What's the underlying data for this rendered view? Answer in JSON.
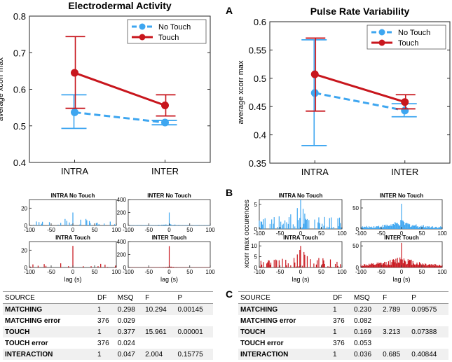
{
  "panel_labels": {
    "a": "A",
    "b": "B",
    "c": "C"
  },
  "colors": {
    "no_touch": "#3ea6f0",
    "touch": "#c8161d",
    "axis": "#262626"
  },
  "chart_data": [
    {
      "id": "eda-main",
      "type": "line",
      "title": "Electrodermal Activity",
      "xlabel": "",
      "ylabel": "average xcorr max",
      "categories": [
        "INTRA",
        "INTER"
      ],
      "ylim": [
        0.4,
        0.8
      ],
      "yticks": [
        "0.4",
        "0.5",
        "0.6",
        "0.7",
        "0.8"
      ],
      "legend": "top-right",
      "series": [
        {
          "name": "No Touch",
          "values": [
            0.537,
            0.509
          ],
          "err_low": [
            0.493,
            0.503
          ],
          "err_high": [
            0.585,
            0.515
          ]
        },
        {
          "name": "Touch",
          "values": [
            0.645,
            0.556
          ],
          "err_low": [
            0.548,
            0.527
          ],
          "err_high": [
            0.744,
            0.585
          ]
        }
      ]
    },
    {
      "id": "prv-main",
      "type": "line",
      "title": "Pulse Rate Variability",
      "xlabel": "",
      "ylabel": "average xcorr max",
      "categories": [
        "INTRA",
        "INTER"
      ],
      "ylim": [
        0.35,
        0.6
      ],
      "yticks": [
        "0.35",
        "0.4",
        "0.45",
        "0.5",
        "0.55",
        "0.6"
      ],
      "legend": "top-right",
      "series": [
        {
          "name": "No Touch",
          "values": [
            0.474,
            0.443
          ],
          "err_low": [
            0.381,
            0.432
          ],
          "err_high": [
            0.568,
            0.455
          ]
        },
        {
          "name": "Touch",
          "values": [
            0.507,
            0.458
          ],
          "err_low": [
            0.442,
            0.446
          ],
          "err_high": [
            0.571,
            0.471
          ]
        }
      ]
    },
    {
      "id": "eda-h1",
      "type": "bar",
      "title": "INTRA No Touch",
      "series": "No Touch",
      "xlim": [
        -100,
        100
      ],
      "ylim": [
        0,
        30
      ],
      "yticks": [
        "0",
        "20"
      ],
      "xticks": [
        "-100",
        "-50",
        "0",
        "50",
        "100"
      ],
      "xlabel": "",
      "values_preview": "sparse counts, peak 15 at lag 0"
    },
    {
      "id": "eda-h2",
      "type": "bar",
      "title": "INTER No Touch",
      "series": "No Touch",
      "xlim": [
        -100,
        100
      ],
      "ylim": [
        0,
        400
      ],
      "yticks": [
        "0",
        "200",
        "400"
      ],
      "xticks": [
        "-100",
        "-50",
        "0",
        "50",
        "100"
      ],
      "xlabel": "",
      "values_preview": "broad low counts, peak 200 at lag 0"
    },
    {
      "id": "eda-h3",
      "type": "bar",
      "title": "INTRA Touch",
      "series": "Touch",
      "xlim": [
        -100,
        100
      ],
      "ylim": [
        0,
        30
      ],
      "yticks": [
        "0",
        "20"
      ],
      "xticks": [
        "-100",
        "-50",
        "0",
        "50",
        "100"
      ],
      "xlabel": "lag (s)",
      "values_preview": "peak 25 near lag 0"
    },
    {
      "id": "eda-h4",
      "type": "bar",
      "title": "INTER Touch",
      "series": "Touch",
      "xlim": [
        -100,
        100
      ],
      "ylim": [
        0,
        400
      ],
      "yticks": [
        "0",
        "200",
        "400"
      ],
      "xticks": [
        "-100",
        "-50",
        "0",
        "50",
        "100"
      ],
      "xlabel": "lag (s)",
      "values_preview": "peak 330 at lag 0"
    },
    {
      "id": "prv-h1",
      "type": "bar",
      "title": "INTRA No Touch",
      "series": "No Touch",
      "xlim": [
        -100,
        100
      ],
      "ylim": [
        0,
        6
      ],
      "yticks": [
        "0",
        "5"
      ],
      "xticks": [
        "-100",
        "-50",
        "0",
        "50",
        "100"
      ],
      "xlabel": "",
      "ylabel": "xcorr max occurences"
    },
    {
      "id": "prv-h2",
      "type": "bar",
      "title": "INTER No Touch",
      "series": "No Touch",
      "xlim": [
        -100,
        100
      ],
      "ylim": [
        0,
        70
      ],
      "yticks": [
        "0",
        "50"
      ],
      "xticks": [
        "-100",
        "-50",
        "0",
        "50",
        "100"
      ],
      "xlabel": ""
    },
    {
      "id": "prv-h3",
      "type": "bar",
      "title": "INTRA Touch",
      "series": "Touch",
      "xlim": [
        -100,
        100
      ],
      "ylim": [
        0,
        12
      ],
      "yticks": [
        "0",
        "5",
        "10"
      ],
      "xticks": [
        "-100",
        "-50",
        "0",
        "50",
        "100"
      ],
      "xlabel": "lag (s)"
    },
    {
      "id": "prv-h4",
      "type": "bar",
      "title": "INTER Touch",
      "series": "Touch",
      "xlim": [
        -100,
        100
      ],
      "ylim": [
        0,
        60
      ],
      "yticks": [
        "0",
        "50"
      ],
      "xticks": [
        "-100",
        "-50",
        "0",
        "50",
        "100"
      ],
      "xlabel": "lag (s)"
    }
  ],
  "tables": {
    "columns": [
      "SOURCE",
      "DF",
      "MSQ",
      "F",
      "P"
    ],
    "eda": [
      [
        "MATCHING",
        "1",
        "0.298",
        "10.294",
        "0.00145"
      ],
      [
        "MATCHING error",
        "376",
        "0.029",
        "",
        ""
      ],
      [
        "TOUCH",
        "1",
        "0.377",
        "15.961",
        "0.00001"
      ],
      [
        "TOUCH error",
        "376",
        "0.024",
        "",
        ""
      ],
      [
        "INTERACTION",
        "1",
        "0.047",
        "2.004",
        "0.15775"
      ]
    ],
    "prv": [
      [
        "MATCHING",
        "1",
        "0.230",
        "2.789",
        "0.09575"
      ],
      [
        "MATCHING error",
        "376",
        "0.082",
        "",
        ""
      ],
      [
        "TOUCH",
        "1",
        "0.169",
        "3.213",
        "0.07388"
      ],
      [
        "TOUCH error",
        "376",
        "0.053",
        "",
        ""
      ],
      [
        "INTERACTION",
        "1",
        "0.036",
        "0.685",
        "0.40844"
      ]
    ]
  }
}
